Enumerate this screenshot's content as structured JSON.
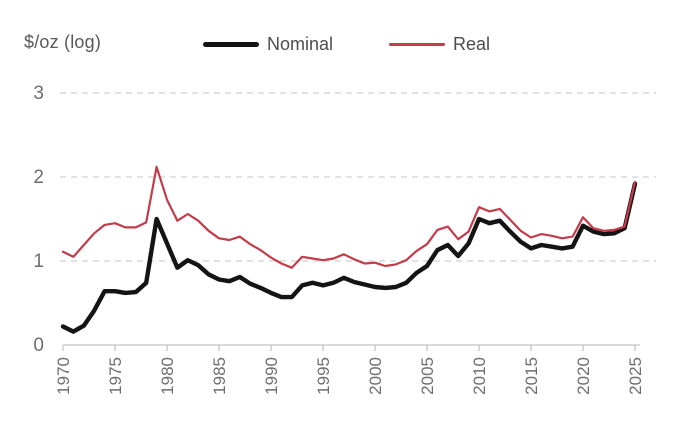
{
  "chart": {
    "unit_label": "$/oz (log)",
    "background_color": "#ffffff",
    "grid_color": "#d9d9d9",
    "axis_color": "#cccccc",
    "tick_label_color": "#6e6e6e",
    "legend_text_color": "#4d4d4d"
  },
  "legend": {
    "items": [
      {
        "label": "Nominal",
        "color": "#141414",
        "thickness": 5
      },
      {
        "label": "Real",
        "color": "#c43b49",
        "thickness": 2.5
      }
    ]
  },
  "chart_data": {
    "type": "line",
    "title": "",
    "ylabel": "$/oz (log)",
    "xlabel": "",
    "grid": "horizontal dashed at y = 1, 2, 3",
    "legend_position": "top",
    "xlim": [
      1970,
      2025
    ],
    "ylim": [
      0,
      3
    ],
    "xticks": [
      "1970",
      "1975",
      "1980",
      "1985",
      "1990",
      "1995",
      "2000",
      "2005",
      "2010",
      "2015",
      "2020",
      "2025"
    ],
    "yticks": [
      "0",
      "1",
      "2",
      "3"
    ],
    "x": [
      1970,
      1971,
      1972,
      1973,
      1974,
      1975,
      1976,
      1977,
      1978,
      1979,
      1980,
      1981,
      1982,
      1983,
      1984,
      1985,
      1986,
      1987,
      1988,
      1989,
      1990,
      1991,
      1992,
      1993,
      1994,
      1995,
      1996,
      1997,
      1998,
      1999,
      2000,
      2001,
      2002,
      2003,
      2004,
      2005,
      2006,
      2007,
      2008,
      2009,
      2010,
      2011,
      2012,
      2013,
      2014,
      2015,
      2016,
      2017,
      2018,
      2019,
      2020,
      2021,
      2022,
      2023,
      2024,
      2025
    ],
    "series": [
      {
        "name": "Nominal",
        "color": "#141414",
        "stroke_width": 4.4,
        "values": [
          0.22,
          0.16,
          0.23,
          0.41,
          0.64,
          0.64,
          0.62,
          0.63,
          0.74,
          1.5,
          1.21,
          0.92,
          1.01,
          0.95,
          0.84,
          0.78,
          0.76,
          0.81,
          0.73,
          0.68,
          0.62,
          0.57,
          0.57,
          0.71,
          0.74,
          0.71,
          0.74,
          0.8,
          0.75,
          0.72,
          0.69,
          0.68,
          0.69,
          0.74,
          0.86,
          0.94,
          1.13,
          1.19,
          1.06,
          1.21,
          1.5,
          1.45,
          1.48,
          1.35,
          1.23,
          1.15,
          1.19,
          1.17,
          1.15,
          1.17,
          1.42,
          1.35,
          1.32,
          1.33,
          1.39,
          1.92
        ]
      },
      {
        "name": "Real",
        "color": "#c43b49",
        "stroke_width": 2.2,
        "values": [
          1.11,
          1.05,
          1.19,
          1.33,
          1.43,
          1.45,
          1.4,
          1.4,
          1.46,
          2.12,
          1.73,
          1.48,
          1.56,
          1.48,
          1.36,
          1.27,
          1.25,
          1.29,
          1.2,
          1.13,
          1.04,
          0.97,
          0.92,
          1.05,
          1.03,
          1.01,
          1.03,
          1.08,
          1.02,
          0.97,
          0.98,
          0.94,
          0.96,
          1.01,
          1.12,
          1.2,
          1.37,
          1.41,
          1.26,
          1.35,
          1.64,
          1.59,
          1.62,
          1.49,
          1.36,
          1.28,
          1.32,
          1.3,
          1.27,
          1.29,
          1.52,
          1.39,
          1.36,
          1.37,
          1.41,
          1.94
        ]
      }
    ]
  }
}
